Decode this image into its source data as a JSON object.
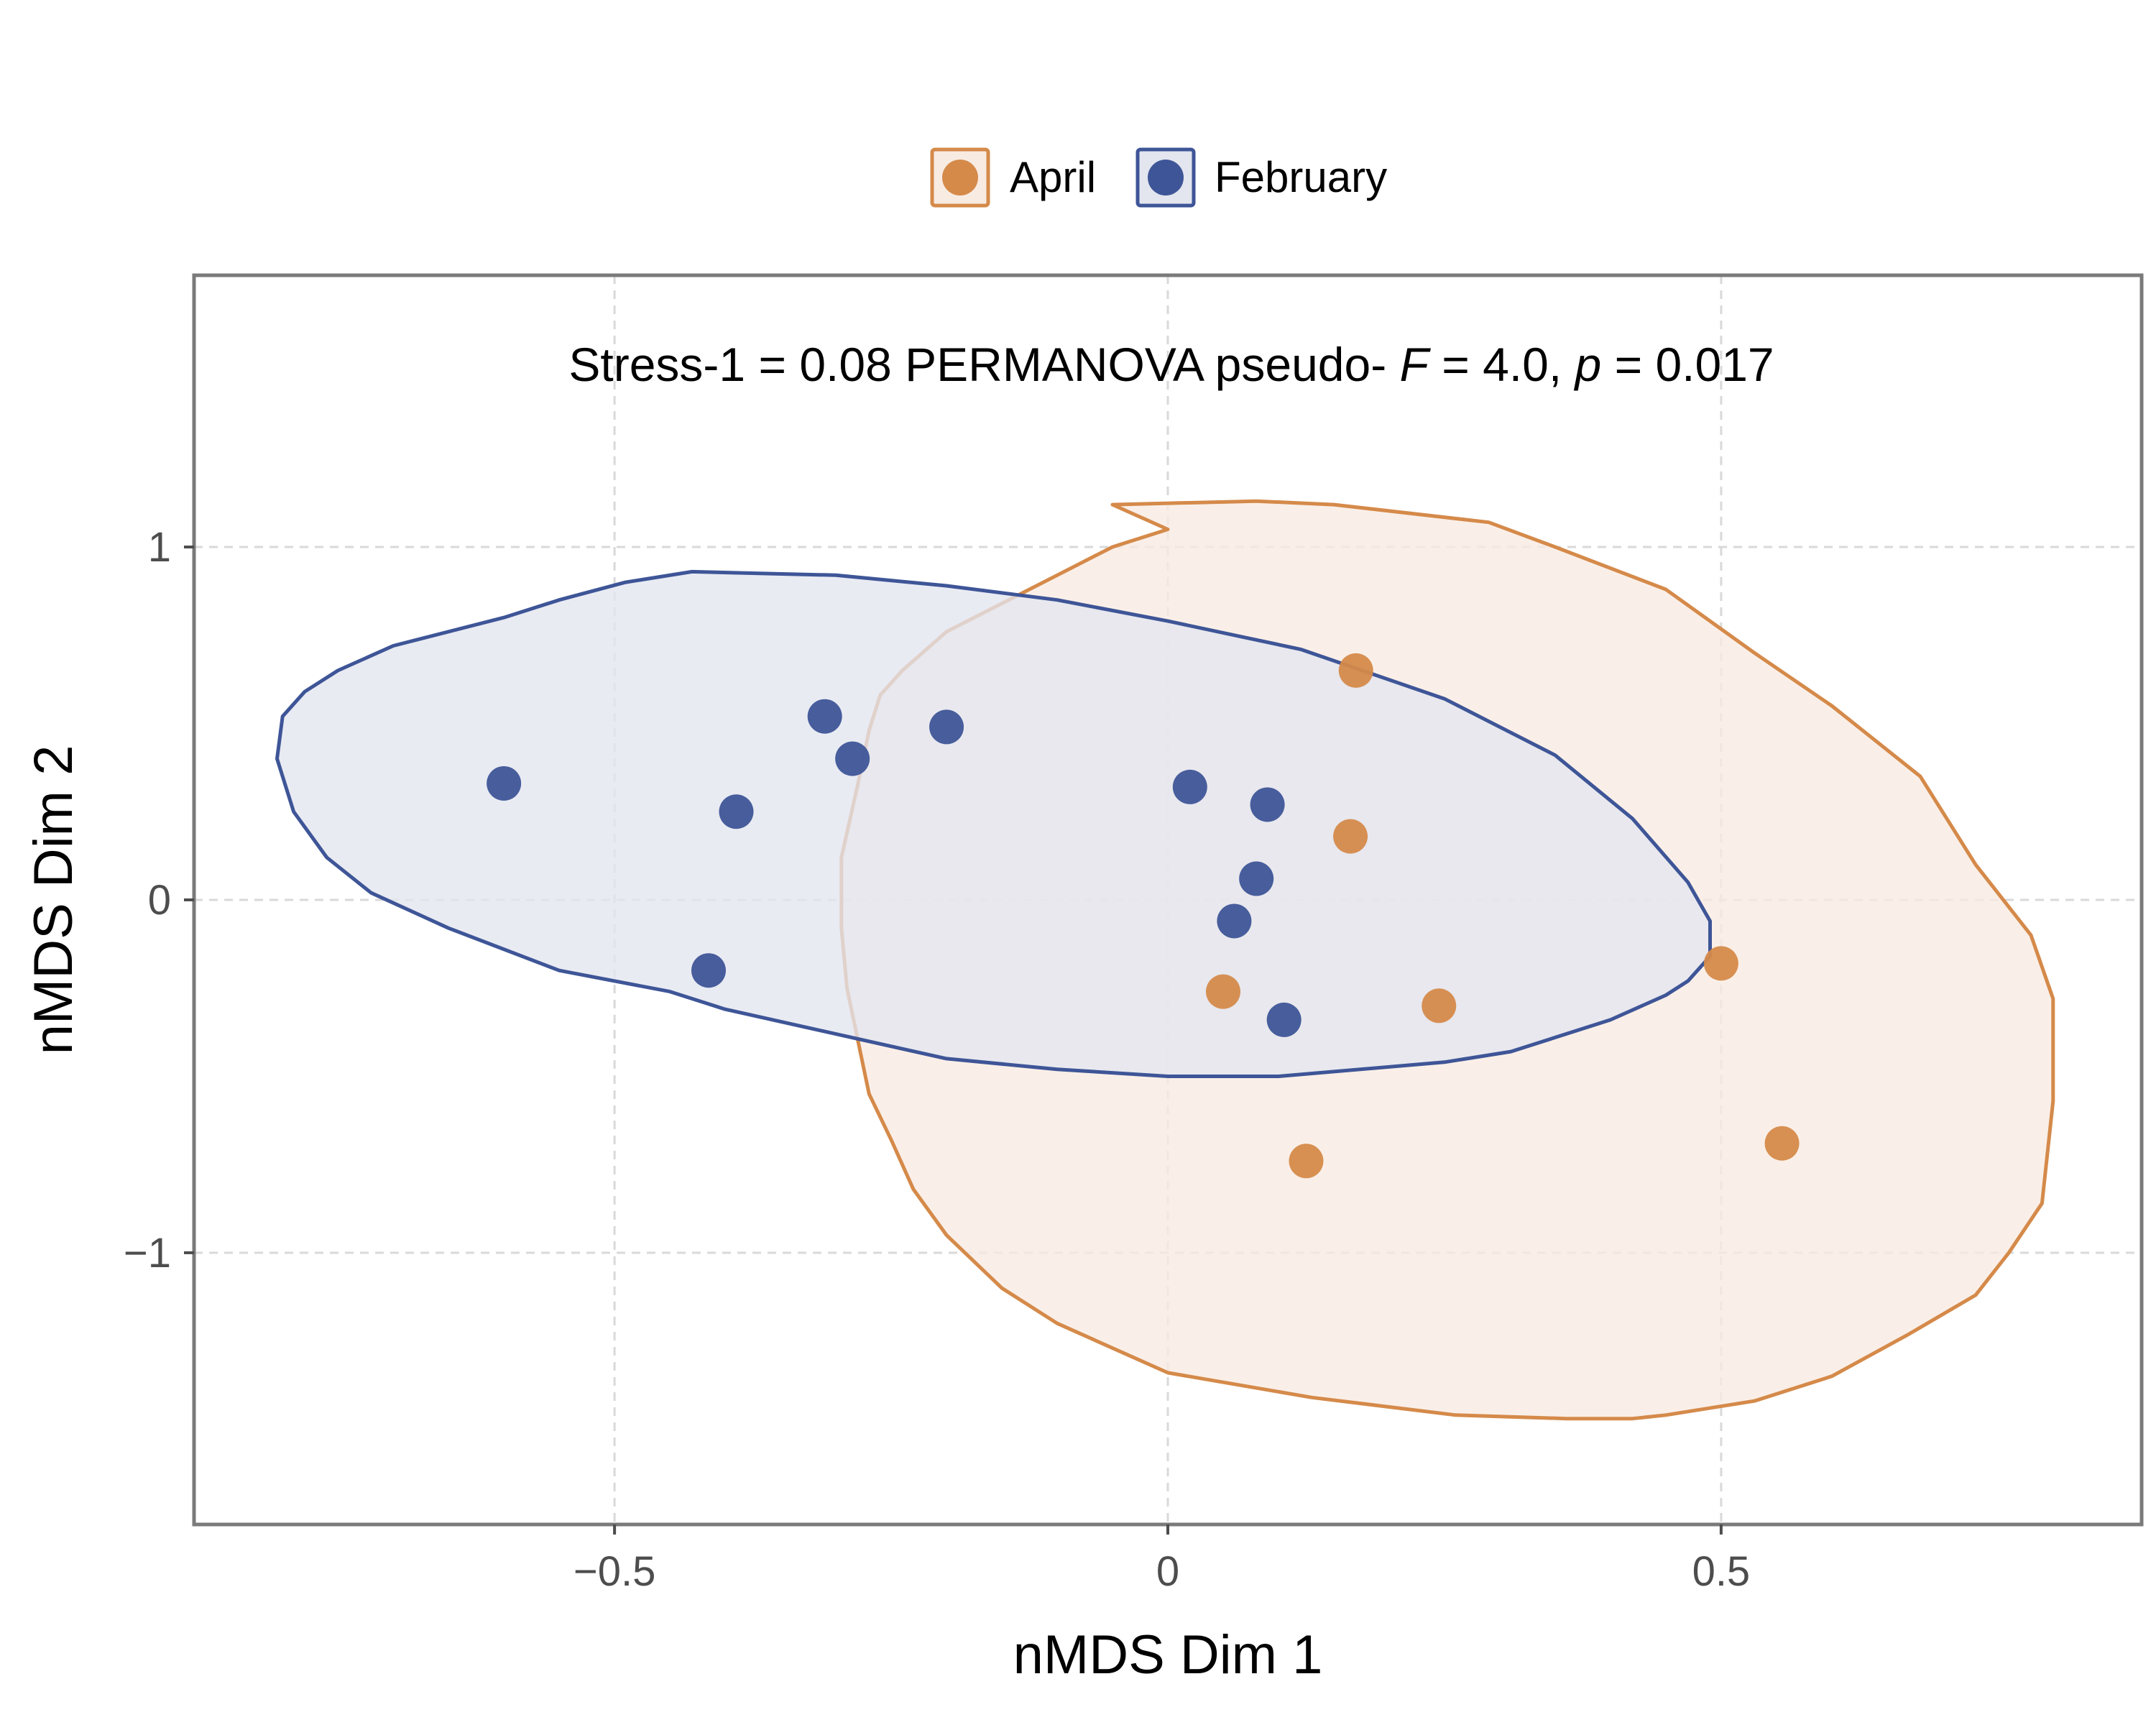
{
  "chart_data": {
    "type": "scatter",
    "xlabel": "nMDS Dim 1",
    "ylabel": "nMDS Dim 2",
    "xlim": [
      -0.88,
      0.88
    ],
    "ylim": [
      -1.77,
      1.77
    ],
    "x_ticks": [
      -0.5,
      0,
      0.5
    ],
    "x_tick_labels": [
      "−0.5",
      "0",
      "0.5"
    ],
    "y_ticks": [
      -1,
      0,
      1
    ],
    "y_tick_labels": [
      "−1",
      "0",
      "1"
    ],
    "grid": true,
    "legend_position": "top",
    "annotation": {
      "stress_text": "Stress-1 = 0.08",
      "permanova_prefix": "PERMANOVA pseudo-",
      "f_symbol": "F",
      "f_value_text": " = 4.0, ",
      "p_symbol": "p",
      "p_value_text": " = 0.017"
    },
    "series": [
      {
        "name": "April",
        "color": "#d58a4a",
        "fill": "#f8ebe2",
        "points": [
          {
            "x": 0.17,
            "y": 0.65
          },
          {
            "x": 0.165,
            "y": 0.18
          },
          {
            "x": 0.05,
            "y": -0.26
          },
          {
            "x": 0.245,
            "y": -0.3
          },
          {
            "x": 0.5,
            "y": -0.18
          },
          {
            "x": 0.555,
            "y": -0.69
          },
          {
            "x": 0.125,
            "y": -0.74
          }
        ],
        "ellipse": [
          [
            -0.05,
            1.12
          ],
          [
            0.08,
            1.13
          ],
          [
            0.15,
            1.12
          ],
          [
            0.29,
            1.07
          ],
          [
            0.35,
            1.0
          ],
          [
            0.45,
            0.88
          ],
          [
            0.53,
            0.7
          ],
          [
            0.6,
            0.55
          ],
          [
            0.68,
            0.35
          ],
          [
            0.73,
            0.1
          ],
          [
            0.78,
            -0.1
          ],
          [
            0.8,
            -0.28
          ],
          [
            0.8,
            -0.57
          ],
          [
            0.79,
            -0.86
          ],
          [
            0.76,
            -1.0
          ],
          [
            0.73,
            -1.12
          ],
          [
            0.67,
            -1.23
          ],
          [
            0.6,
            -1.35
          ],
          [
            0.53,
            -1.42
          ],
          [
            0.45,
            -1.46
          ],
          [
            0.42,
            -1.47
          ],
          [
            0.36,
            -1.47
          ],
          [
            0.26,
            -1.46
          ],
          [
            0.13,
            -1.41
          ],
          [
            0.0,
            -1.34
          ],
          [
            -0.1,
            -1.2
          ],
          [
            -0.15,
            -1.1
          ],
          [
            -0.2,
            -0.95
          ],
          [
            -0.23,
            -0.82
          ],
          [
            -0.25,
            -0.68
          ],
          [
            -0.27,
            -0.55
          ],
          [
            -0.28,
            -0.4
          ],
          [
            -0.29,
            -0.25
          ],
          [
            -0.295,
            -0.08
          ],
          [
            -0.295,
            0.12
          ],
          [
            -0.28,
            0.33
          ],
          [
            -0.27,
            0.48
          ],
          [
            -0.26,
            0.58
          ],
          [
            -0.24,
            0.65
          ],
          [
            -0.2,
            0.76
          ],
          [
            -0.15,
            0.84
          ],
          [
            -0.1,
            0.92
          ],
          [
            -0.05,
            1.0
          ],
          [
            0.0,
            1.05
          ],
          [
            -0.05,
            1.12
          ]
        ]
      },
      {
        "name": "February",
        "color": "#3e5597",
        "fill": "#e3e5ef",
        "points": [
          {
            "x": -0.6,
            "y": 0.33
          },
          {
            "x": -0.39,
            "y": 0.25
          },
          {
            "x": -0.31,
            "y": 0.52
          },
          {
            "x": -0.285,
            "y": 0.4
          },
          {
            "x": -0.2,
            "y": 0.49
          },
          {
            "x": 0.02,
            "y": 0.32
          },
          {
            "x": 0.09,
            "y": 0.27
          },
          {
            "x": 0.08,
            "y": 0.06
          },
          {
            "x": 0.06,
            "y": -0.06
          },
          {
            "x": -0.415,
            "y": -0.2
          },
          {
            "x": 0.105,
            "y": -0.34
          }
        ],
        "ellipse": [
          [
            -0.43,
            0.93
          ],
          [
            -0.3,
            0.92
          ],
          [
            -0.2,
            0.89
          ],
          [
            -0.1,
            0.85
          ],
          [
            0.0,
            0.79
          ],
          [
            0.12,
            0.71
          ],
          [
            0.25,
            0.57
          ],
          [
            0.35,
            0.41
          ],
          [
            0.42,
            0.23
          ],
          [
            0.47,
            0.05
          ],
          [
            0.49,
            -0.06
          ],
          [
            0.49,
            -0.16
          ],
          [
            0.47,
            -0.23
          ],
          [
            0.45,
            -0.27
          ],
          [
            0.4,
            -0.34
          ],
          [
            0.31,
            -0.43
          ],
          [
            0.25,
            -0.46
          ],
          [
            0.1,
            -0.5
          ],
          [
            0.0,
            -0.5
          ],
          [
            -0.1,
            -0.48
          ],
          [
            -0.2,
            -0.45
          ],
          [
            -0.3,
            -0.38
          ],
          [
            -0.4,
            -0.31
          ],
          [
            -0.45,
            -0.26
          ],
          [
            -0.55,
            -0.2
          ],
          [
            -0.65,
            -0.08
          ],
          [
            -0.72,
            0.02
          ],
          [
            -0.76,
            0.12
          ],
          [
            -0.79,
            0.25
          ],
          [
            -0.805,
            0.4
          ],
          [
            -0.8,
            0.52
          ],
          [
            -0.78,
            0.59
          ],
          [
            -0.75,
            0.65
          ],
          [
            -0.7,
            0.72
          ],
          [
            -0.6,
            0.8
          ],
          [
            -0.55,
            0.85
          ],
          [
            -0.49,
            0.9
          ],
          [
            -0.43,
            0.93
          ]
        ]
      }
    ]
  }
}
